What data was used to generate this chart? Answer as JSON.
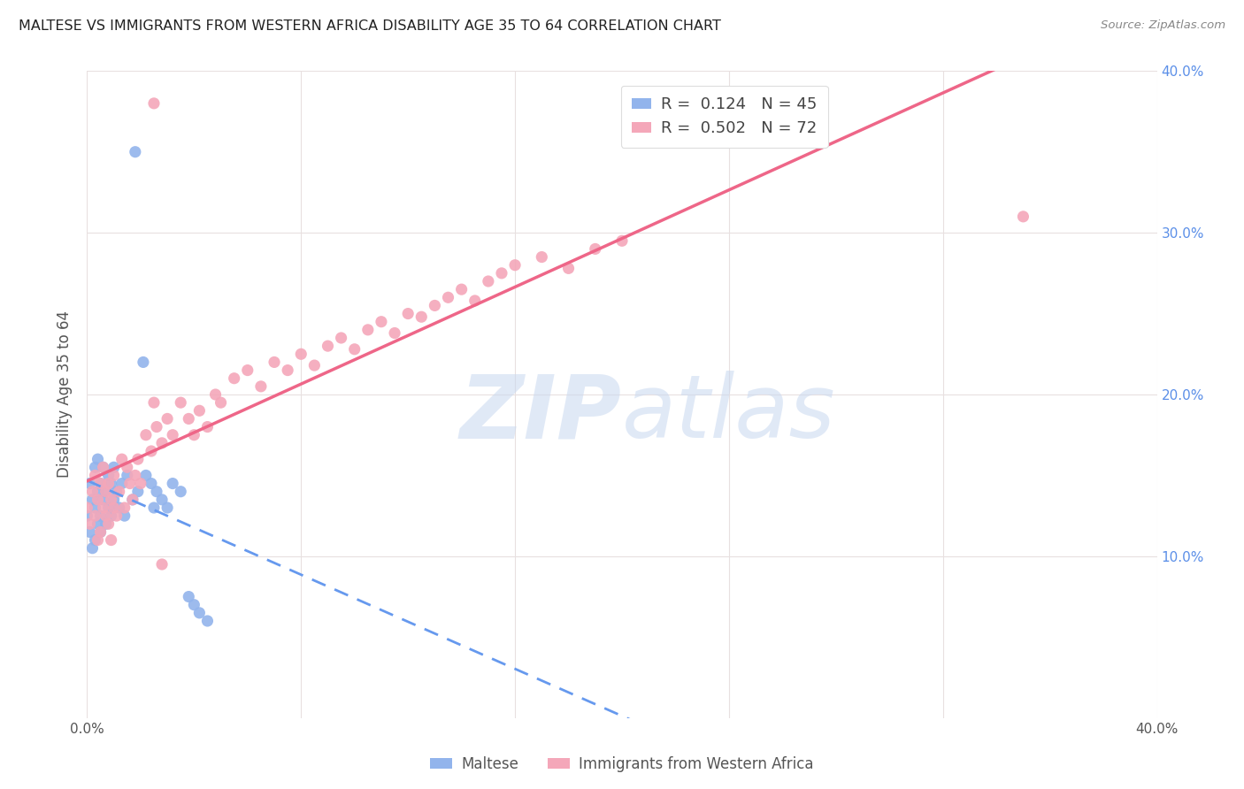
{
  "title": "MALTESE VS IMMIGRANTS FROM WESTERN AFRICA DISABILITY AGE 35 TO 64 CORRELATION CHART",
  "source": "Source: ZipAtlas.com",
  "ylabel": "Disability Age 35 to 64",
  "xlim": [
    0.0,
    0.4
  ],
  "ylim": [
    0.0,
    0.4
  ],
  "xtick_vals": [
    0.0,
    0.4
  ],
  "xtick_labels": [
    "0.0%",
    "40.0%"
  ],
  "ytick_vals": [
    0.1,
    0.2,
    0.3,
    0.4
  ],
  "ytick_labels_right": [
    "10.0%",
    "20.0%",
    "30.0%",
    "40.0%"
  ],
  "maltese_R": 0.124,
  "maltese_N": 45,
  "western_africa_R": 0.502,
  "western_africa_N": 72,
  "maltese_color": "#92B4EC",
  "western_africa_color": "#F4A7B9",
  "maltese_line_color": "#6699EE",
  "western_africa_line_color": "#EE6688",
  "watermark_color": "#C8D8F0",
  "background_color": "#ffffff",
  "grid_color": "#E8E0E0",
  "maltese_x": [
    0.0,
    0.001,
    0.001,
    0.002,
    0.002,
    0.003,
    0.003,
    0.003,
    0.004,
    0.004,
    0.004,
    0.005,
    0.005,
    0.005,
    0.006,
    0.006,
    0.007,
    0.007,
    0.008,
    0.008,
    0.009,
    0.009,
    0.01,
    0.01,
    0.011,
    0.012,
    0.013,
    0.014,
    0.015,
    0.017,
    0.018,
    0.019,
    0.021,
    0.022,
    0.024,
    0.025,
    0.026,
    0.028,
    0.03,
    0.032,
    0.035,
    0.038,
    0.04,
    0.042,
    0.045
  ],
  "maltese_y": [
    0.125,
    0.145,
    0.115,
    0.135,
    0.105,
    0.13,
    0.155,
    0.11,
    0.14,
    0.12,
    0.16,
    0.125,
    0.145,
    0.115,
    0.135,
    0.155,
    0.12,
    0.14,
    0.13,
    0.15,
    0.125,
    0.145,
    0.155,
    0.135,
    0.14,
    0.13,
    0.145,
    0.125,
    0.15,
    0.135,
    0.35,
    0.14,
    0.22,
    0.15,
    0.145,
    0.13,
    0.14,
    0.135,
    0.13,
    0.145,
    0.14,
    0.075,
    0.07,
    0.065,
    0.06
  ],
  "western_africa_x": [
    0.0,
    0.001,
    0.002,
    0.003,
    0.003,
    0.004,
    0.004,
    0.005,
    0.005,
    0.006,
    0.006,
    0.007,
    0.007,
    0.008,
    0.008,
    0.009,
    0.009,
    0.01,
    0.01,
    0.011,
    0.012,
    0.013,
    0.014,
    0.015,
    0.016,
    0.017,
    0.018,
    0.019,
    0.02,
    0.022,
    0.024,
    0.025,
    0.026,
    0.028,
    0.03,
    0.032,
    0.035,
    0.038,
    0.04,
    0.042,
    0.045,
    0.048,
    0.05,
    0.055,
    0.06,
    0.065,
    0.07,
    0.075,
    0.08,
    0.085,
    0.09,
    0.095,
    0.1,
    0.105,
    0.11,
    0.115,
    0.12,
    0.125,
    0.13,
    0.135,
    0.14,
    0.145,
    0.15,
    0.155,
    0.16,
    0.17,
    0.18,
    0.19,
    0.2,
    0.35,
    0.025,
    0.028
  ],
  "western_africa_y": [
    0.13,
    0.12,
    0.14,
    0.125,
    0.15,
    0.135,
    0.11,
    0.145,
    0.115,
    0.13,
    0.155,
    0.125,
    0.14,
    0.12,
    0.145,
    0.135,
    0.11,
    0.13,
    0.15,
    0.125,
    0.14,
    0.16,
    0.13,
    0.155,
    0.145,
    0.135,
    0.15,
    0.16,
    0.145,
    0.175,
    0.165,
    0.195,
    0.18,
    0.17,
    0.185,
    0.175,
    0.195,
    0.185,
    0.175,
    0.19,
    0.18,
    0.2,
    0.195,
    0.21,
    0.215,
    0.205,
    0.22,
    0.215,
    0.225,
    0.218,
    0.23,
    0.235,
    0.228,
    0.24,
    0.245,
    0.238,
    0.25,
    0.248,
    0.255,
    0.26,
    0.265,
    0.258,
    0.27,
    0.275,
    0.28,
    0.285,
    0.278,
    0.29,
    0.295,
    0.31,
    0.38,
    0.095
  ]
}
